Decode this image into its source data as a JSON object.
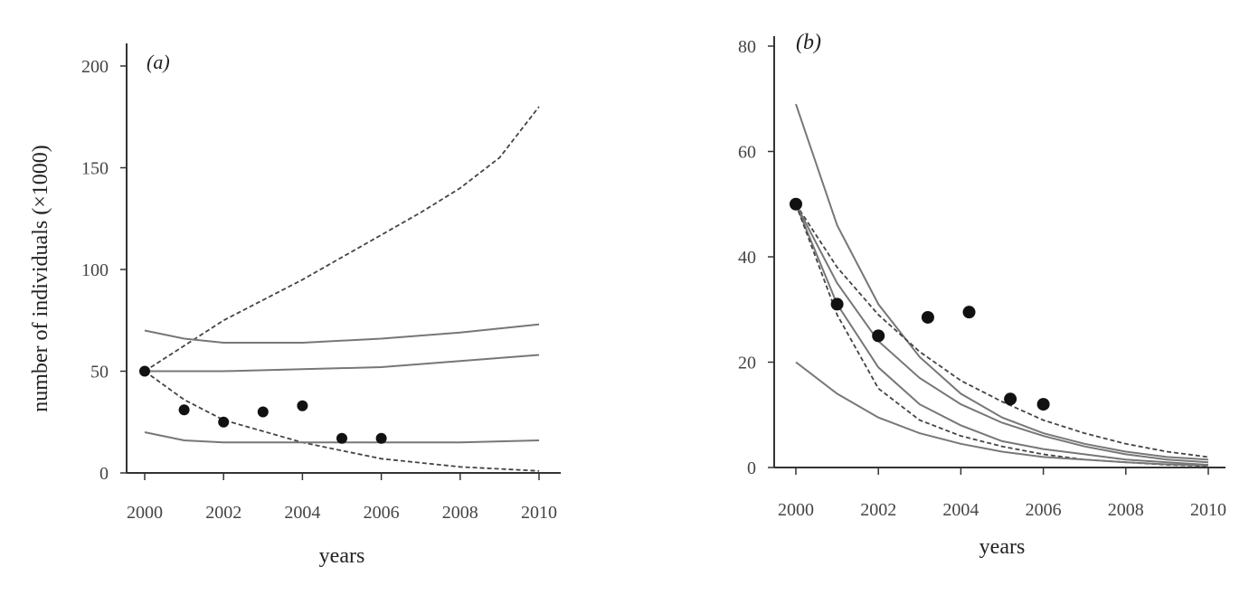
{
  "chart_data": [
    {
      "type": "line",
      "panel_label": "(a)",
      "xlabel": "years",
      "ylabel": "number of individuals (×1000)",
      "xlim": [
        2000,
        2010
      ],
      "ylim": [
        0,
        200
      ],
      "x_ticks": [
        "2000",
        "2002",
        "2004",
        "2006",
        "2008",
        "2010"
      ],
      "y_ticks": [
        "0",
        "50",
        "100",
        "150",
        "200"
      ],
      "x_tick_values": [
        2000,
        2002,
        2004,
        2006,
        2008,
        2010
      ],
      "y_tick_values": [
        0,
        50,
        100,
        150,
        200
      ],
      "series": [
        {
          "style": "dashed",
          "x": [
            2000,
            2002,
            2004,
            2006,
            2007,
            2008,
            2009,
            2010
          ],
          "values": [
            50,
            75,
            95,
            117,
            128,
            140,
            155,
            180
          ]
        },
        {
          "style": "solid",
          "x": [
            2000,
            2001,
            2002,
            2004,
            2006,
            2008,
            2010
          ],
          "values": [
            70,
            66,
            64,
            64,
            66,
            69,
            73
          ]
        },
        {
          "style": "solid",
          "x": [
            2000,
            2002,
            2004,
            2006,
            2008,
            2010
          ],
          "values": [
            50,
            50,
            51,
            52,
            55,
            58
          ]
        },
        {
          "style": "dashed",
          "x": [
            2000,
            2001,
            2002,
            2004,
            2006,
            2008,
            2010
          ],
          "values": [
            50,
            36,
            26,
            15,
            7,
            3,
            1
          ]
        },
        {
          "style": "solid",
          "x": [
            2000,
            2001,
            2002,
            2004,
            2006,
            2008,
            2010
          ],
          "values": [
            20,
            16,
            15,
            15,
            15,
            15,
            16
          ]
        }
      ],
      "observed": {
        "x": [
          2000,
          2001,
          2002,
          2003,
          2004,
          2005,
          2006
        ],
        "values": [
          50,
          31,
          25,
          30,
          33,
          17,
          17
        ]
      }
    },
    {
      "type": "line",
      "panel_label": "(b)",
      "xlabel": "years",
      "ylabel": "",
      "xlim": [
        2000,
        2010
      ],
      "ylim": [
        0,
        80
      ],
      "x_ticks": [
        "2000",
        "2002",
        "2004",
        "2006",
        "2008",
        "2010"
      ],
      "y_ticks": [
        "0",
        "20",
        "40",
        "60",
        "80"
      ],
      "x_tick_values": [
        2000,
        2002,
        2004,
        2006,
        2008,
        2010
      ],
      "y_tick_values": [
        0,
        20,
        40,
        60,
        80
      ],
      "series": [
        {
          "style": "solid",
          "x": [
            2000,
            2001,
            2002,
            2003,
            2004,
            2005,
            2006,
            2007,
            2008,
            2009,
            2010
          ],
          "values": [
            69,
            46,
            31,
            21,
            14,
            9.5,
            6.5,
            4.5,
            3,
            2,
            1.5
          ]
        },
        {
          "style": "dashed",
          "x": [
            2000,
            2001,
            2002,
            2003,
            2004,
            2005,
            2006,
            2007,
            2008,
            2009,
            2010
          ],
          "values": [
            50,
            38,
            29,
            22,
            16.5,
            12.5,
            9,
            6.5,
            4.5,
            3,
            2
          ]
        },
        {
          "style": "solid",
          "x": [
            2000,
            2001,
            2002,
            2003,
            2004,
            2005,
            2006,
            2007,
            2008,
            2009,
            2010
          ],
          "values": [
            50,
            35,
            24,
            17,
            12,
            8.5,
            6,
            4,
            2.5,
            1.5,
            1
          ]
        },
        {
          "style": "solid",
          "x": [
            2000,
            2001,
            2002,
            2003,
            2004,
            2005,
            2006,
            2007,
            2008,
            2009,
            2010
          ],
          "values": [
            50,
            31,
            19,
            12,
            8,
            5,
            3.5,
            2.5,
            1.5,
            1,
            0.5
          ]
        },
        {
          "style": "dashed",
          "x": [
            2000,
            2001,
            2002,
            2003,
            2004,
            2005,
            2006,
            2007,
            2008,
            2009,
            2010
          ],
          "values": [
            50,
            29,
            15,
            9,
            6,
            4,
            2.5,
            1.5,
            1,
            0.5,
            0.3
          ]
        },
        {
          "style": "solid",
          "x": [
            2000,
            2001,
            2002,
            2003,
            2004,
            2005,
            2006,
            2007,
            2008,
            2009,
            2010
          ],
          "values": [
            20,
            14,
            9.5,
            6.5,
            4.5,
            3,
            2,
            1.5,
            1,
            0.6,
            0.4
          ]
        }
      ],
      "observed": {
        "x": [
          2000,
          2001,
          2002,
          2003.2,
          2004.2,
          2005.2,
          2006
        ],
        "values": [
          50,
          31,
          25,
          28.5,
          29.5,
          13,
          12
        ]
      }
    }
  ]
}
